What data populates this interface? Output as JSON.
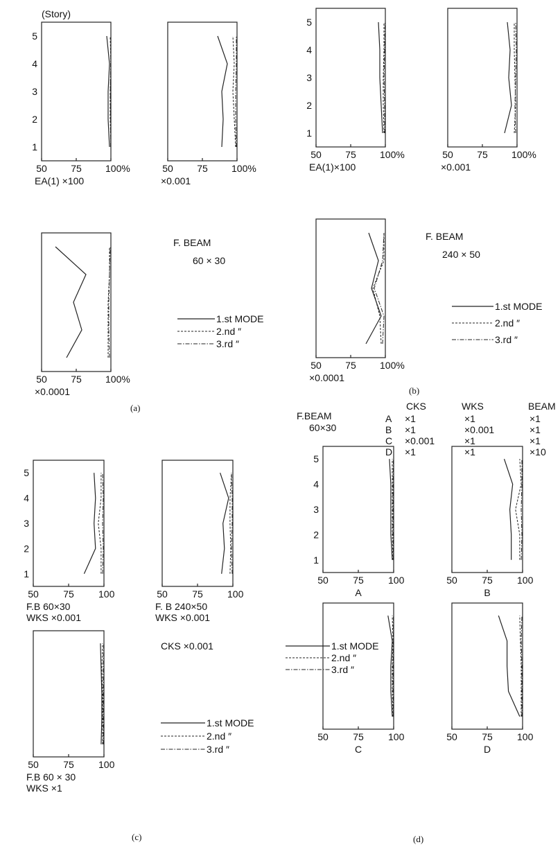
{
  "figure": {
    "modes": [
      "1.st MODE",
      "2.nd ″",
      "3.rd ″"
    ],
    "labels": {
      "story_unit": "(Story)",
      "fbeam_a_title": "F. BEAM",
      "fbeam_a_size": "60 × 30",
      "fbeam_b_title": "F. BEAM",
      "fbeam_b_size": "240 × 50",
      "panel_a": "(a)",
      "panel_b": "(b)",
      "panel_c": "(c)",
      "panel_d": "(d)",
      "cks_c": "CKS  ×0.001",
      "fbeam_d_title": "F.BEAM",
      "fbeam_d_size": "60×30"
    },
    "table": {
      "headers": [
        "CKS",
        "WKS",
        "BEAM"
      ],
      "rows": [
        [
          "A",
          "×1",
          "×1",
          "×1"
        ],
        [
          "B",
          "×1",
          "×0.001",
          "×1"
        ],
        [
          "C",
          "×0.001",
          "×1",
          "×1"
        ],
        [
          "D",
          "×1",
          "×1",
          "×10"
        ]
      ]
    }
  },
  "chart_data": [
    {
      "type": "line",
      "panel": "a",
      "xlim": [
        50,
        100
      ],
      "ylim": [
        1,
        5
      ],
      "xticks": [
        "50",
        "75",
        "100%"
      ],
      "yticks": [
        "1",
        "2",
        "3",
        "4",
        "5"
      ],
      "caption": [
        "EA(1) ×100"
      ],
      "series": [
        {
          "name": "1.st MODE",
          "x": [
            99,
            98,
            98,
            99,
            97
          ],
          "y": [
            1,
            2,
            3,
            4,
            5
          ]
        },
        {
          "name": "2.nd ″",
          "x": [
            100,
            99.5,
            99.5,
            100,
            99.5
          ],
          "y": [
            1,
            2,
            3,
            4,
            5
          ]
        },
        {
          "name": "3.rd ″",
          "x": [
            99.8,
            99.8,
            99.6,
            99.8,
            100
          ],
          "y": [
            1,
            2,
            3,
            4,
            5
          ]
        }
      ]
    },
    {
      "type": "line",
      "panel": "a",
      "xlim": [
        50,
        100
      ],
      "ylim": [
        1,
        5
      ],
      "xticks": [
        "50",
        "75",
        "100%"
      ],
      "yticks": [],
      "caption": [
        "×0.001"
      ],
      "series": [
        {
          "name": "1.st MODE",
          "x": [
            89,
            90,
            89,
            93,
            86
          ],
          "y": [
            1,
            2,
            3,
            4,
            5
          ]
        },
        {
          "name": "2.nd ″",
          "x": [
            99,
            98,
            97,
            98,
            97
          ],
          "y": [
            1,
            2,
            3,
            4,
            5
          ]
        },
        {
          "name": "3.rd ″",
          "x": [
            99.5,
            99,
            99,
            99.5,
            99.5
          ],
          "y": [
            1,
            2,
            3,
            4,
            5
          ]
        }
      ]
    },
    {
      "type": "line",
      "panel": "a",
      "xlim": [
        50,
        100
      ],
      "ylim": [
        1,
        5
      ],
      "xticks": [
        "50",
        "75",
        "100%"
      ],
      "yticks": [],
      "caption": [
        "×0.0001"
      ],
      "series": [
        {
          "name": "1.st MODE",
          "x": [
            68,
            79,
            73,
            82,
            60
          ],
          "y": [
            1,
            2,
            3,
            4,
            5
          ]
        },
        {
          "name": "2.nd ″",
          "x": [
            98,
            98,
            98,
            99,
            99
          ],
          "y": [
            1,
            2,
            3,
            4,
            5
          ]
        },
        {
          "name": "3.rd ″",
          "x": [
            99,
            98.5,
            98.5,
            99,
            99.5
          ],
          "y": [
            1,
            2,
            3,
            4,
            5
          ]
        }
      ]
    },
    {
      "type": "line",
      "panel": "b",
      "xlim": [
        50,
        100
      ],
      "ylim": [
        1,
        5
      ],
      "xticks": [
        "50",
        "75",
        "100%"
      ],
      "yticks": [
        "1",
        "2",
        "3",
        "4",
        "5"
      ],
      "caption": [
        "EA(1)×100"
      ],
      "series": [
        {
          "name": "1.st MODE",
          "x": [
            98,
            97,
            96,
            96,
            95
          ],
          "y": [
            1,
            2,
            3,
            4,
            5
          ]
        },
        {
          "name": "2.nd ″",
          "x": [
            99,
            98.5,
            98.5,
            99,
            99
          ],
          "y": [
            1,
            2,
            3,
            4,
            5
          ]
        },
        {
          "name": "3.rd ″",
          "x": [
            99.5,
            99.5,
            99,
            99.5,
            99.8
          ],
          "y": [
            1,
            2,
            3,
            4,
            5
          ]
        }
      ]
    },
    {
      "type": "line",
      "panel": "b",
      "xlim": [
        50,
        100
      ],
      "ylim": [
        1,
        5
      ],
      "xticks": [
        "50",
        "75",
        "100%"
      ],
      "yticks": [],
      "caption": [
        "×0.001"
      ],
      "series": [
        {
          "name": "1.st MODE",
          "x": [
            91,
            96,
            94,
            95,
            93
          ],
          "y": [
            1,
            2,
            3,
            4,
            5
          ]
        },
        {
          "name": "2.nd ″",
          "x": [
            98,
            99,
            98.5,
            98,
            98
          ],
          "y": [
            1,
            2,
            3,
            4,
            5
          ]
        },
        {
          "name": "3.rd ″",
          "x": [
            99,
            98.5,
            99,
            99.5,
            99
          ],
          "y": [
            1,
            2,
            3,
            4,
            5
          ]
        }
      ]
    },
    {
      "type": "line",
      "panel": "b",
      "xlim": [
        50,
        100
      ],
      "ylim": [
        1,
        5
      ],
      "xticks": [
        "50",
        "75",
        "100%"
      ],
      "yticks": [],
      "caption": [
        "×0.0001"
      ],
      "series": [
        {
          "name": "1.st MODE",
          "x": [
            86,
            97,
            90,
            95,
            88
          ],
          "y": [
            1,
            2,
            3,
            4,
            5
          ]
        },
        {
          "name": "2.nd ″",
          "x": [
            97,
            96,
            91,
            99,
            99
          ],
          "y": [
            1,
            2,
            3,
            4,
            5
          ]
        },
        {
          "name": "3.rd ″",
          "x": [
            98,
            99,
            92,
            98,
            99
          ],
          "y": [
            1,
            2,
            3,
            4,
            5
          ]
        }
      ]
    },
    {
      "type": "line",
      "panel": "c",
      "xlim": [
        50,
        100
      ],
      "ylim": [
        1,
        5
      ],
      "xticks": [
        "50",
        "75",
        "100"
      ],
      "yticks": [
        "1",
        "2",
        "3",
        "4",
        "5"
      ],
      "caption": [
        "F.B  60×30",
        "WKS  ×0.001"
      ],
      "series": [
        {
          "name": "1.st MODE",
          "x": [
            86,
            94,
            93,
            94,
            93
          ],
          "y": [
            1,
            2,
            3,
            4,
            5
          ]
        },
        {
          "name": "2.nd ″",
          "x": [
            98,
            98,
            96,
            98,
            98
          ],
          "y": [
            1,
            2,
            3,
            4,
            5
          ]
        },
        {
          "name": "3.rd ″",
          "x": [
            99,
            99.5,
            99,
            99.5,
            99
          ],
          "y": [
            1,
            2,
            3,
            4,
            5
          ]
        }
      ]
    },
    {
      "type": "line",
      "panel": "c",
      "xlim": [
        50,
        100
      ],
      "ylim": [
        1,
        5
      ],
      "xticks": [
        "50",
        "75",
        "100"
      ],
      "yticks": [],
      "caption": [
        "F. B  240×50",
        "WKS  ×0.001"
      ],
      "series": [
        {
          "name": "1.st MODE",
          "x": [
            92,
            94,
            93,
            97,
            91
          ],
          "y": [
            1,
            2,
            3,
            4,
            5
          ]
        },
        {
          "name": "2.nd ″",
          "x": [
            98,
            98.5,
            98,
            98,
            99
          ],
          "y": [
            1,
            2,
            3,
            4,
            5
          ]
        },
        {
          "name": "3.rd ″",
          "x": [
            99.5,
            99,
            99.5,
            99.5,
            99
          ],
          "y": [
            1,
            2,
            3,
            4,
            5
          ]
        }
      ]
    },
    {
      "type": "line",
      "panel": "c",
      "xlim": [
        50,
        100
      ],
      "ylim": [
        1,
        5
      ],
      "xticks": [
        "50",
        "75",
        "100"
      ],
      "yticks": [],
      "caption": [
        "F.B   60 × 30",
        "WKS  ×1"
      ],
      "series": [
        {
          "name": "1.st MODE",
          "x": [
            98,
            98.5,
            98.5,
            98,
            97.5
          ],
          "y": [
            1,
            2,
            3,
            4,
            5
          ]
        },
        {
          "name": "2.nd ″",
          "x": [
            99,
            99,
            99,
            98.5,
            99
          ],
          "y": [
            1,
            2,
            3,
            4,
            5
          ]
        },
        {
          "name": "3.rd ″",
          "x": [
            99.5,
            99.5,
            99.5,
            99.5,
            99.8
          ],
          "y": [
            1,
            2,
            3,
            4,
            5
          ]
        }
      ]
    },
    {
      "type": "line",
      "panel": "d",
      "xlim": [
        50,
        100
      ],
      "ylim": [
        1,
        5
      ],
      "xticks": [
        "50",
        "75",
        "100"
      ],
      "yticks": [
        "1",
        "2",
        "3",
        "4",
        "5"
      ],
      "caption": [
        "A"
      ],
      "series": [
        {
          "name": "1.st MODE",
          "x": [
            99,
            98,
            98,
            98,
            97
          ],
          "y": [
            1,
            2,
            3,
            4,
            5
          ]
        },
        {
          "name": "2.nd ″",
          "x": [
            99.5,
            99,
            99,
            99,
            99
          ],
          "y": [
            1,
            2,
            3,
            4,
            5
          ]
        },
        {
          "name": "3.rd ″",
          "x": [
            99.8,
            99.5,
            99.5,
            99.5,
            99.8
          ],
          "y": [
            1,
            2,
            3,
            4,
            5
          ]
        }
      ]
    },
    {
      "type": "line",
      "panel": "d",
      "xlim": [
        50,
        100
      ],
      "ylim": [
        1,
        5
      ],
      "xticks": [
        "50",
        "75",
        "100"
      ],
      "yticks": [],
      "caption": [
        "B"
      ],
      "series": [
        {
          "name": "1.st MODE",
          "x": [
            92,
            92,
            91,
            93,
            87
          ],
          "y": [
            1,
            2,
            3,
            4,
            5
          ]
        },
        {
          "name": "2.nd ″",
          "x": [
            98,
            98,
            95,
            99,
            98
          ],
          "y": [
            1,
            2,
            3,
            4,
            5
          ]
        },
        {
          "name": "3.rd ″",
          "x": [
            99,
            99.5,
            99,
            99.5,
            99.5
          ],
          "y": [
            1,
            2,
            3,
            4,
            5
          ]
        }
      ]
    },
    {
      "type": "line",
      "panel": "d",
      "xlim": [
        50,
        100
      ],
      "ylim": [
        1,
        5
      ],
      "xticks": [
        "50",
        "75",
        "100"
      ],
      "yticks": [],
      "caption": [
        "C"
      ],
      "series": [
        {
          "name": "1.st MODE",
          "x": [
            99,
            98,
            98,
            99,
            96
          ],
          "y": [
            1,
            2,
            3,
            4,
            5
          ]
        },
        {
          "name": "2.nd ″",
          "x": [
            99.5,
            99,
            99,
            99.5,
            99
          ],
          "y": [
            1,
            2,
            3,
            4,
            5
          ]
        },
        {
          "name": "3.rd ″",
          "x": [
            99.8,
            99.5,
            99.5,
            99.8,
            99.8
          ],
          "y": [
            1,
            2,
            3,
            4,
            5
          ]
        }
      ]
    },
    {
      "type": "line",
      "panel": "d",
      "xlim": [
        50,
        100
      ],
      "ylim": [
        1,
        5
      ],
      "xticks": [
        "50",
        "75",
        "100"
      ],
      "yticks": [],
      "caption": [
        "D"
      ],
      "series": [
        {
          "name": "1.st MODE",
          "x": [
            98,
            90,
            89,
            89,
            83
          ],
          "y": [
            1,
            2,
            3,
            4,
            5
          ]
        },
        {
          "name": "2.nd ″",
          "x": [
            99,
            99,
            99,
            98.5,
            98
          ],
          "y": [
            1,
            2,
            3,
            4,
            5
          ]
        },
        {
          "name": "3.rd ″",
          "x": [
            99.5,
            99.5,
            99.5,
            99,
            99.5
          ],
          "y": [
            1,
            2,
            3,
            4,
            5
          ]
        }
      ]
    }
  ]
}
